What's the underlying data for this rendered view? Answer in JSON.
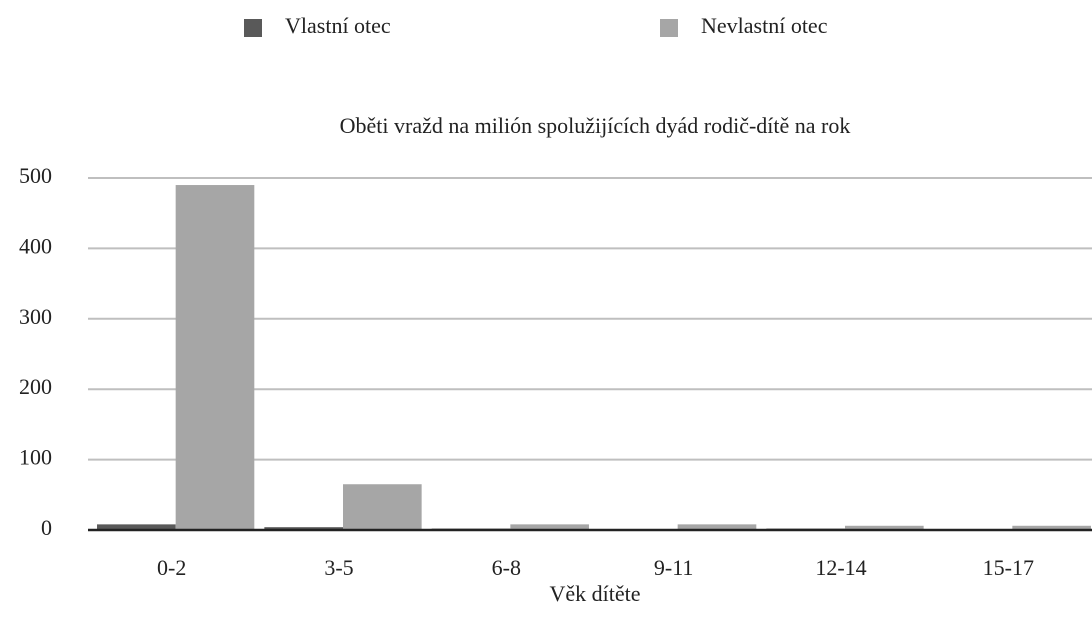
{
  "chart_data": {
    "type": "bar",
    "title": "Oběti vražd na milión spolužijících dyád rodič-dítě na rok",
    "x_label": "Věk dítěte",
    "categories": [
      "0-2",
      "3-5",
      "6-8",
      "9-11",
      "12-14",
      "15-17"
    ],
    "series": [
      {
        "name": "Vlastní otec",
        "color": "#595959",
        "values": [
          8,
          4,
          2,
          1,
          2,
          1
        ]
      },
      {
        "name": "Nevlastní otec",
        "color": "#a6a6a6",
        "values": [
          490,
          65,
          8,
          8,
          6,
          6
        ]
      }
    ],
    "ylim": [
      0,
      500
    ],
    "yticks": [
      0,
      100,
      200,
      300,
      400,
      500
    ],
    "grid": true,
    "legend": "top"
  }
}
